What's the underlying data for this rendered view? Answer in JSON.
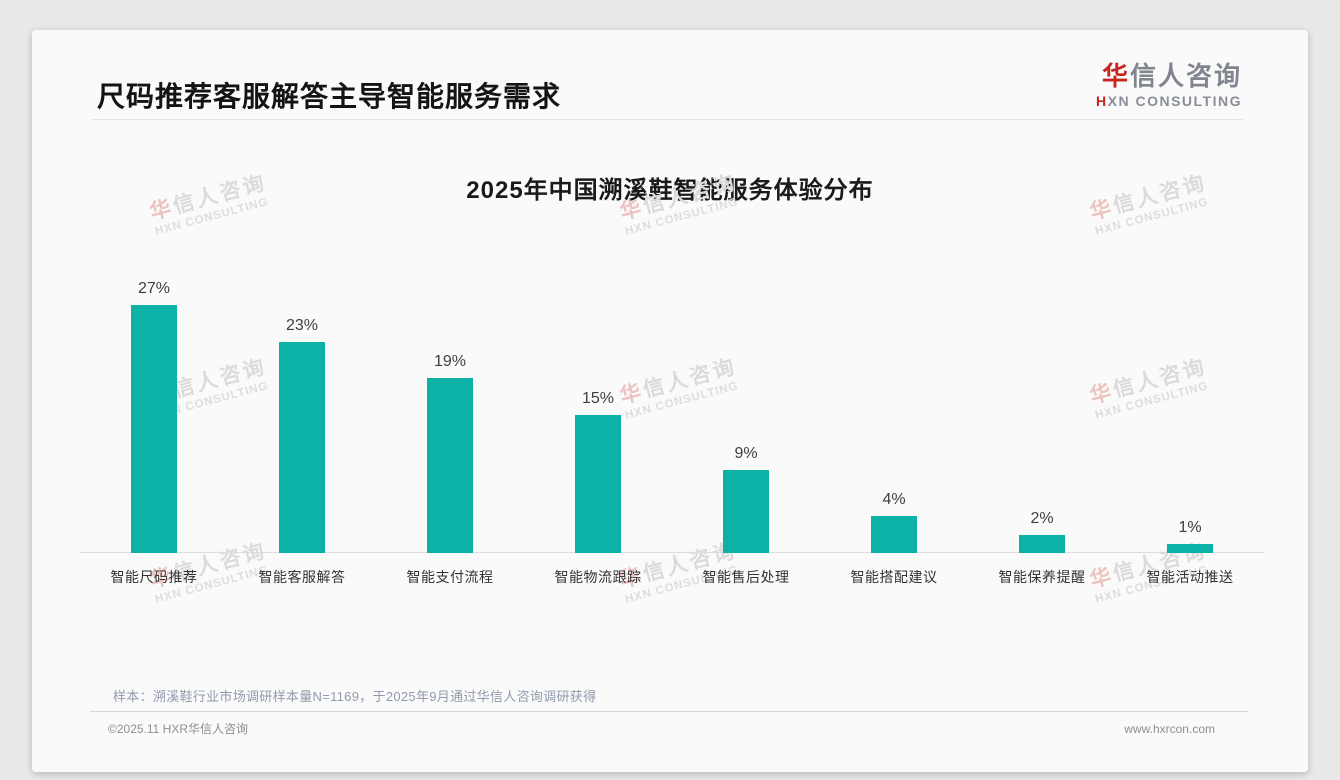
{
  "header": {
    "title": "尺码推荐客服解答主导智能服务需求"
  },
  "logo": {
    "cn_first": "华",
    "cn_rest": "信人咨询",
    "en_first": "H",
    "en_rest": "XN CONSULTING"
  },
  "watermark": {
    "cn_first": "华",
    "cn_rest": "信人咨询",
    "en": "HXN CONSULTING"
  },
  "footnote": {
    "text": "样本：溯溪鞋行业市场调研样本量N=1169，于2025年9月通过华信人咨询调研获得"
  },
  "footer": {
    "left": "©2025.11 HXR华信人咨询",
    "right": "www.hxrcon.com"
  },
  "colors": {
    "bar": "#0cb2a5",
    "accent_red": "#c6261f"
  },
  "chart_data": {
    "type": "bar",
    "title": "2025年中国溯溪鞋智能服务体验分布",
    "categories": [
      "智能尺码推荐",
      "智能客服解答",
      "智能支付流程",
      "智能物流跟踪",
      "智能售后处理",
      "智能搭配建议",
      "智能保养提醒",
      "智能活动推送"
    ],
    "values": [
      27,
      23,
      19,
      15,
      9,
      4,
      2,
      1
    ],
    "value_labels": [
      "27%",
      "23%",
      "19%",
      "15%",
      "9%",
      "4%",
      "2%",
      "1%"
    ],
    "unit": "%",
    "xlabel": "",
    "ylabel": "",
    "ylim": [
      0,
      30
    ],
    "grid": false,
    "legend": "none",
    "bar_color": "#0cb2a5"
  }
}
